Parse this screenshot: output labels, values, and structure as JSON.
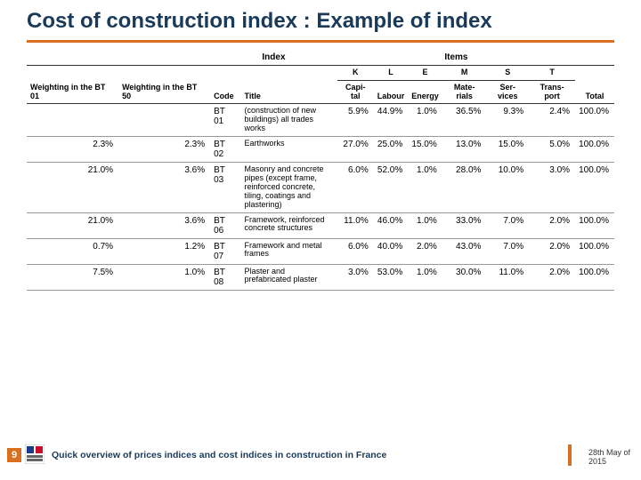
{
  "title": "Cost of construction index : Example of index",
  "colors": {
    "accent": "#d87020",
    "title": "#1a3a5a"
  },
  "headers": {
    "group_index": "Index",
    "group_items": "Items",
    "w01": "Weighting in the BT 01",
    "w50": "Weighting in the BT 50",
    "code": "Code",
    "title_col": "Title",
    "k": "K",
    "l": "L",
    "e": "E",
    "m": "M",
    "s": "S",
    "t": "T",
    "total": "Total",
    "k_sub": "Capi-tal",
    "l_sub": "Labour",
    "e_sub": "Energy",
    "m_sub": "Mate-rials",
    "s_sub": "Ser-vices",
    "t_sub": "Trans-port"
  },
  "rows": [
    {
      "w01": "",
      "w50": "",
      "code": "BT 01",
      "desc": "(construction of new buildings) all trades works",
      "k": "5.9%",
      "l": "44.9%",
      "e": "1.0%",
      "m": "36.5%",
      "s": "9.3%",
      "t": "2.4%",
      "total": "100.0%"
    },
    {
      "w01": "2.3%",
      "w50": "2.3%",
      "code": "BT 02",
      "desc": "Earthworks",
      "k": "27.0%",
      "l": "25.0%",
      "e": "15.0%",
      "m": "13.0%",
      "s": "15.0%",
      "t": "5.0%",
      "total": "100.0%"
    },
    {
      "w01": "21.0%",
      "w50": "3.6%",
      "code": "BT 03",
      "desc": "Masonry and concrete pipes (except frame, reinforced concrete, tiling, coatings and plastering)",
      "k": "6.0%",
      "l": "52.0%",
      "e": "1.0%",
      "m": "28.0%",
      "s": "10.0%",
      "t": "3.0%",
      "total": "100.0%"
    },
    {
      "w01": "21.0%",
      "w50": "3.6%",
      "code": "BT 06",
      "desc": "Framework, reinforced concrete structures",
      "k": "11.0%",
      "l": "46.0%",
      "e": "1.0%",
      "m": "33.0%",
      "s": "7.0%",
      "t": "2.0%",
      "total": "100.0%"
    },
    {
      "w01": "0.7%",
      "w50": "1.2%",
      "code": "BT 07",
      "desc": "Framework and metal frames",
      "k": "6.0%",
      "l": "40.0%",
      "e": "2.0%",
      "m": "43.0%",
      "s": "7.0%",
      "t": "2.0%",
      "total": "100.0%"
    },
    {
      "w01": "7.5%",
      "w50": "1.0%",
      "code": "BT 08",
      "desc": "Plaster and prefabricated plaster",
      "k": "3.0%",
      "l": "53.0%",
      "e": "1.0%",
      "m": "30.0%",
      "s": "11.0%",
      "t": "2.0%",
      "total": "100.0%"
    }
  ],
  "footer": {
    "page": "9",
    "text": "Quick overview of prices indices and cost indices in construction in France",
    "date_line1": "28th May of",
    "date_line2": "2015"
  }
}
